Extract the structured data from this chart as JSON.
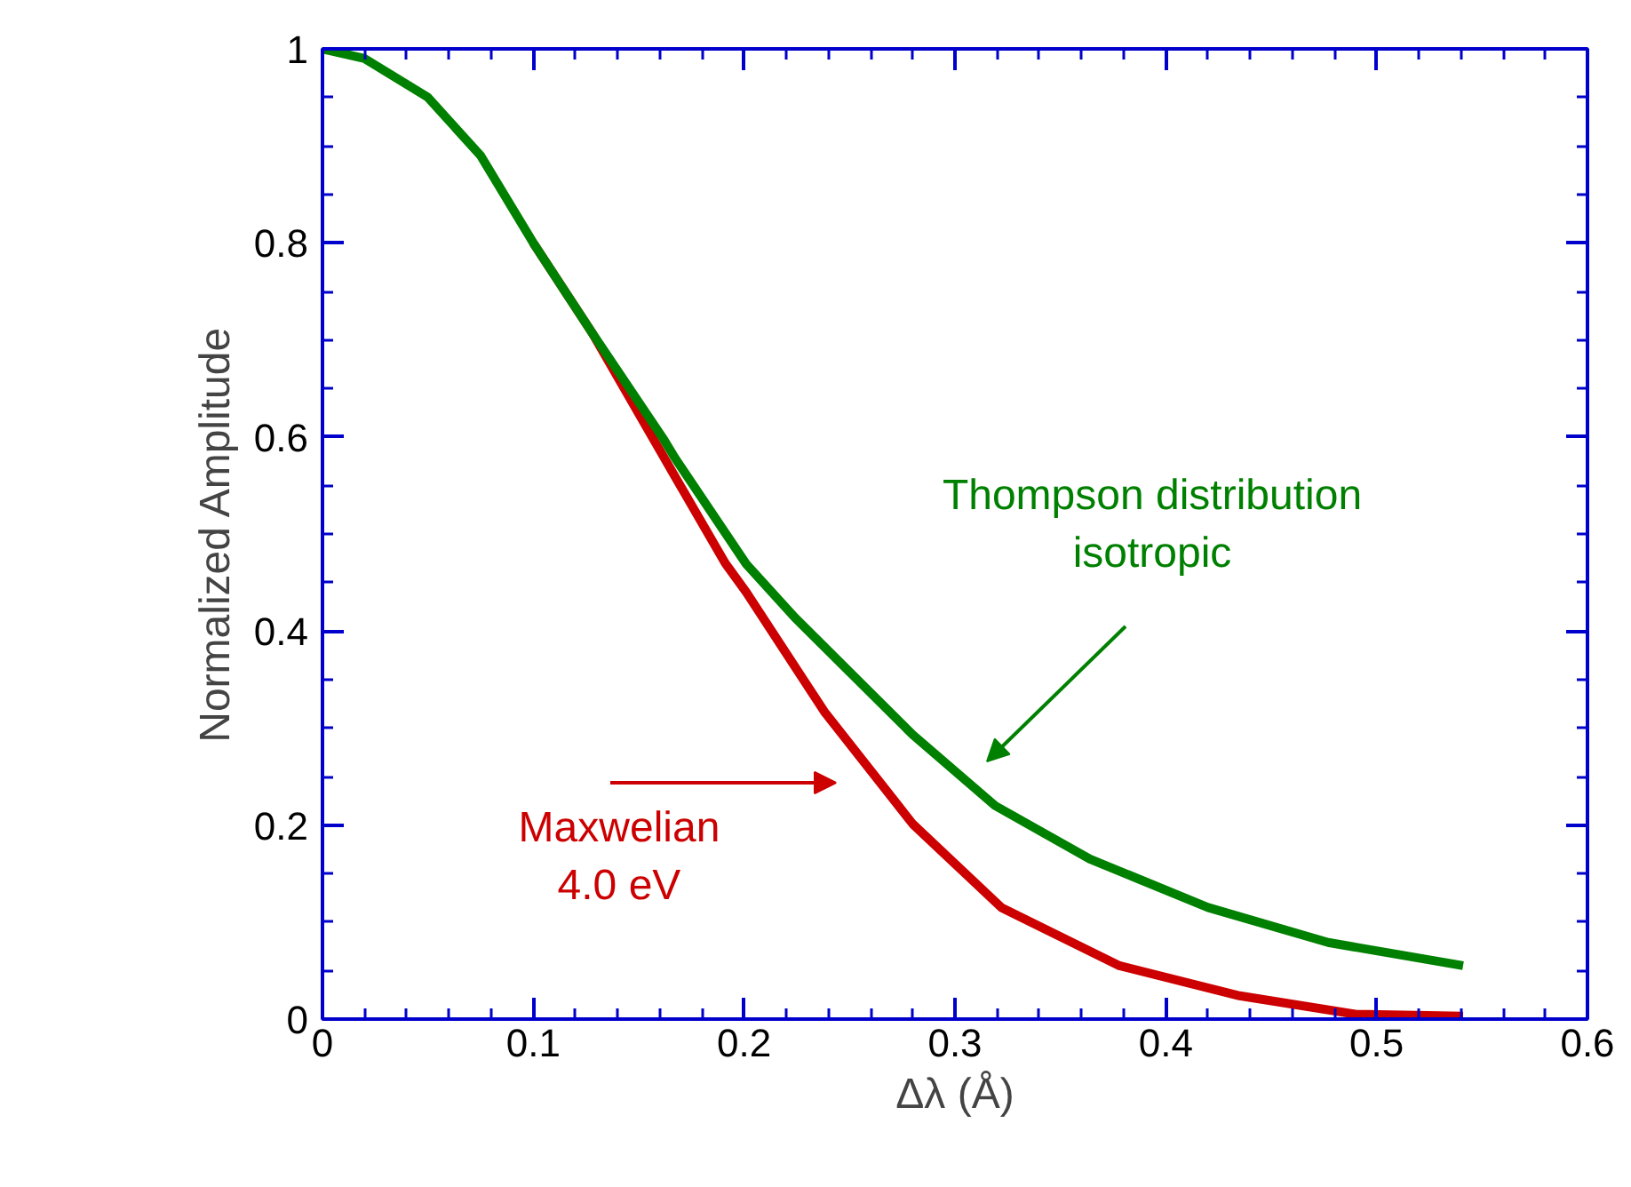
{
  "chart_data": {
    "type": "line",
    "xlabel": "Δλ (Å)",
    "ylabel": "Normalized Amplitude",
    "xlim": [
      0,
      0.6
    ],
    "ylim": [
      0,
      1
    ],
    "xticks": [
      0,
      0.1,
      0.2,
      0.3,
      0.4,
      0.5,
      0.6
    ],
    "yticks": [
      0,
      0.2,
      0.4,
      0.6,
      0.8,
      1
    ],
    "series": [
      {
        "color": "#cc0000",
        "x": [
          0.1,
          0.128,
          0.167,
          0.191,
          0.201,
          0.238,
          0.28,
          0.322,
          0.378,
          0.435,
          0.49,
          0.541
        ],
        "values": [
          0.8,
          0.707,
          0.56,
          0.47,
          0.44,
          0.317,
          0.201,
          0.115,
          0.055,
          0.024,
          0.005,
          0.003
        ]
      },
      {
        "color": "#008000",
        "x": [
          0,
          0.02,
          0.05,
          0.075,
          0.1,
          0.128,
          0.162,
          0.167,
          0.201,
          0.224,
          0.28,
          0.319,
          0.364,
          0.42,
          0.477,
          0.541
        ],
        "values": [
          1.0,
          0.99,
          0.95,
          0.89,
          0.8,
          0.707,
          0.597,
          0.579,
          0.469,
          0.414,
          0.293,
          0.22,
          0.165,
          0.115,
          0.079,
          0.055
        ]
      }
    ],
    "annotations": [
      "Maxwelian\n4.0 eV",
      "Thompson distribution\nisotropic"
    ],
    "grid": false,
    "marker": "none",
    "line_style": "solid"
  }
}
